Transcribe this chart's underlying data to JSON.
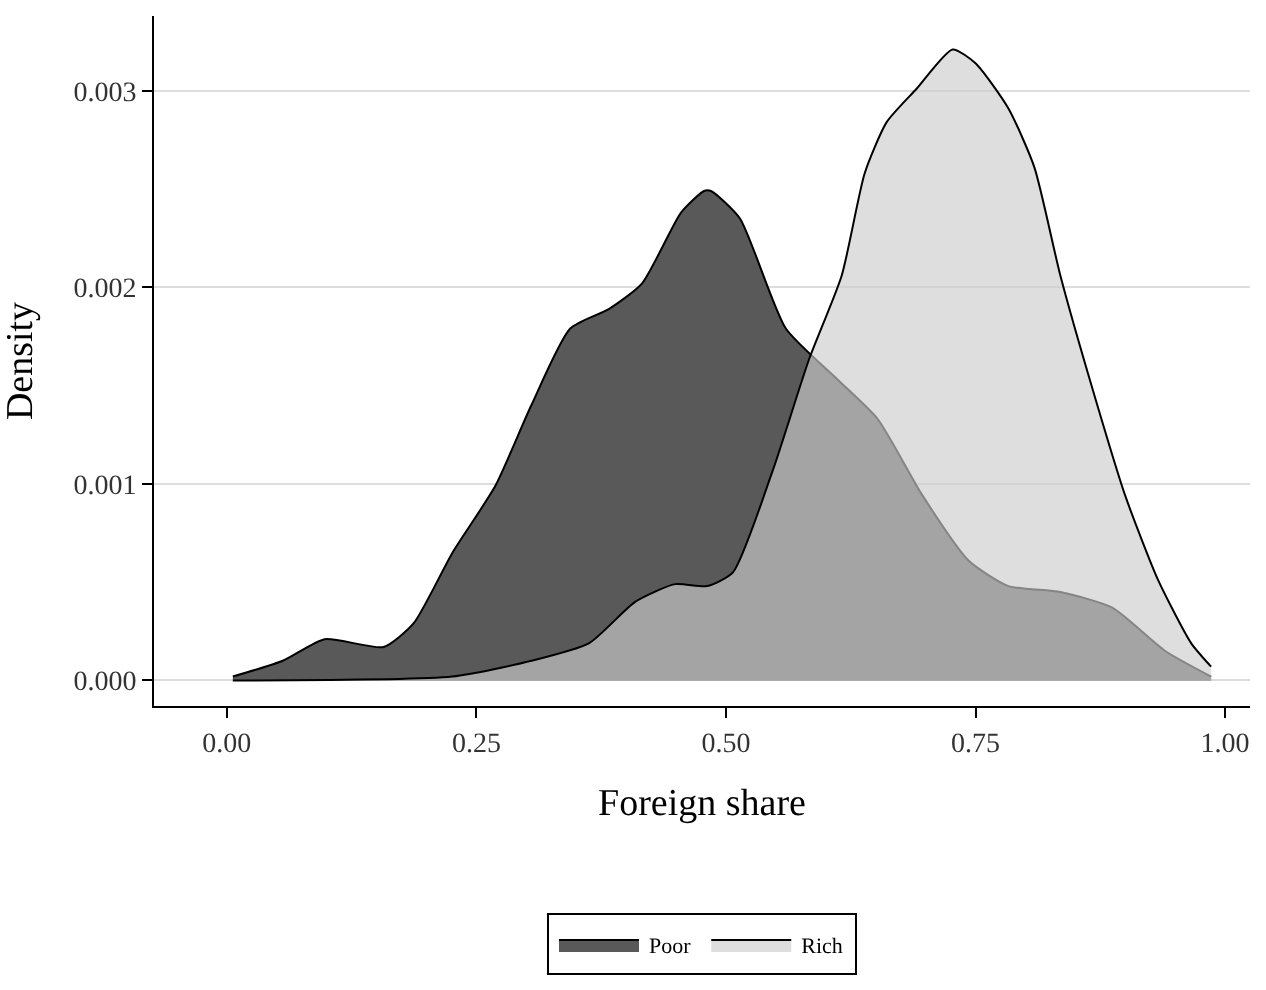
{
  "chart_data": {
    "type": "area",
    "xlabel": "Foreign share",
    "ylabel": "Density",
    "xlim": [
      -0.073,
      1.025
    ],
    "xticks": [
      {
        "value": 0,
        "label": "0.00"
      },
      0.25,
      {
        "value": 0.5,
        "label": "0.50"
      },
      0.75,
      {
        "value": 1,
        "label": "1.00"
      }
    ],
    "ylim": [
      -0.00013,
      0.00338
    ],
    "yticks": [
      {
        "value": 0,
        "label": "0.000"
      },
      0.001,
      0.002,
      0.003
    ],
    "grid": "y",
    "legend": "bottom",
    "marker": "none",
    "line_style": "solid",
    "series": [
      {
        "name": "Poor",
        "color": "#595959",
        "x": [
          0.006,
          0.056,
          0.098,
          0.157,
          0.187,
          0.226,
          0.269,
          0.305,
          0.344,
          0.383,
          0.416,
          0.455,
          0.478,
          0.485,
          0.514,
          0.56,
          0.612,
          0.652,
          0.697,
          0.743,
          0.783,
          0.835,
          0.887,
          0.94,
          0.986
        ],
        "values": [
          2e-05,
          0.0001,
          0.00021,
          0.00017,
          0.00029,
          0.00065,
          0.00099,
          0.0014,
          0.00179,
          0.00189,
          0.00202,
          0.00238,
          0.00249,
          0.00249,
          0.00235,
          0.00179,
          0.00153,
          0.00133,
          0.00094,
          0.00061,
          0.00048,
          0.00045,
          0.00037,
          0.00015,
          2e-05
        ]
      },
      {
        "name": "Rich",
        "color": "#cccccc",
        "x": [
          0.006,
          0.226,
          0.305,
          0.363,
          0.409,
          0.449,
          0.481,
          0.507,
          0.547,
          0.583,
          0.616,
          0.639,
          0.661,
          0.691,
          0.727,
          0.75,
          0.783,
          0.809,
          0.835,
          0.868,
          0.9,
          0.933,
          0.966,
          0.986
        ],
        "values": [
          0.0,
          2e-05,
          0.0001,
          0.00019,
          0.0004,
          0.00049,
          0.00048,
          0.00055,
          0.00107,
          0.00163,
          0.00206,
          0.00258,
          0.00284,
          0.00301,
          0.00321,
          0.00314,
          0.00291,
          0.00261,
          0.00206,
          0.00147,
          0.00094,
          0.00051,
          0.00019,
          7e-05
        ]
      }
    ]
  }
}
